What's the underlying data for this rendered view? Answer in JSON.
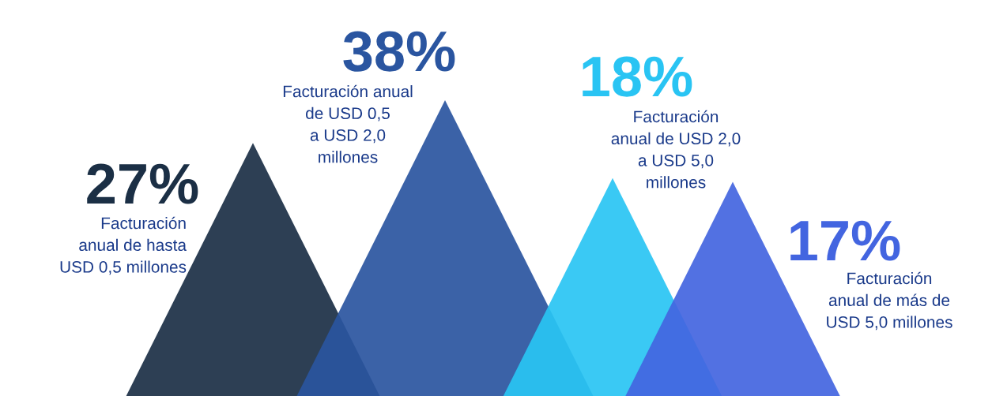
{
  "chart_data": {
    "type": "other",
    "categories": [
      "Facturación\nanual de hasta\nUSD 0,5 millones",
      "Facturación anual\nde USD 0,5\na USD 2,0\nmillones",
      "Facturación\nanual de USD 2,0\na USD 5,0\nmillones",
      "Facturación\nanual de más de\nUSD 5,0 millones"
    ],
    "values": [
      27,
      38,
      18,
      17
    ],
    "value_labels": [
      "27%",
      "38%",
      "18%",
      "17%"
    ],
    "colors": [
      "#1b2f45",
      "#2a55a0",
      "#29c4f3",
      "#4365e0"
    ]
  }
}
